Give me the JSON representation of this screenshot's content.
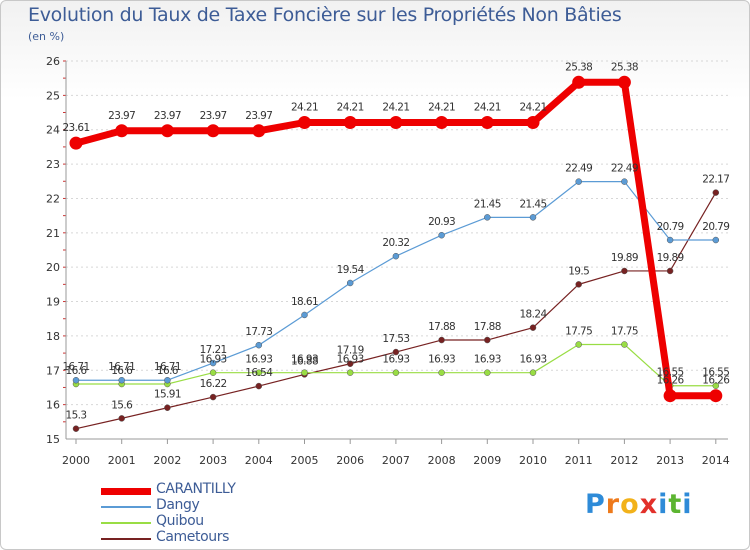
{
  "chart_data": {
    "type": "line",
    "title": "Evolution du Taux de Taxe Foncière sur les Propriétés Non Bâties",
    "ylabel": "(en %)",
    "xlabel": "",
    "ylim": [
      15,
      26
    ],
    "yticks": [
      "15",
      "16",
      "17",
      "18",
      "19",
      "20",
      "21",
      "22",
      "23",
      "24",
      "25",
      "26"
    ],
    "categories": [
      "2000",
      "2001",
      "2002",
      "2003",
      "2004",
      "2005",
      "2006",
      "2007",
      "2008",
      "2009",
      "2010",
      "2011",
      "2012",
      "2013",
      "2014"
    ],
    "series": [
      {
        "name": "CARANTILLY",
        "color": "#ee0000",
        "values": [
          23.61,
          23.97,
          23.97,
          23.97,
          23.97,
          24.21,
          24.21,
          24.21,
          24.21,
          24.21,
          24.21,
          25.38,
          25.38,
          16.26,
          16.26
        ],
        "labels": [
          "23.61",
          "23.97",
          "23.97",
          "23.97",
          "23.97",
          "24.21",
          "24.21",
          "24.21",
          "24.21",
          "24.21",
          "24.21",
          "25.38",
          "25.38",
          "16.26",
          "16.26"
        ]
      },
      {
        "name": "Dangy",
        "color": "#5b9bd5",
        "values": [
          16.71,
          16.71,
          16.71,
          17.21,
          17.73,
          18.61,
          19.54,
          20.32,
          20.93,
          21.45,
          21.45,
          22.49,
          22.49,
          20.79,
          20.79
        ],
        "labels": [
          "16.71",
          "16.71",
          "16.71",
          "17.21",
          "17.73",
          "18.61",
          "19.54",
          "20.32",
          "20.93",
          "21.45",
          "21.45",
          "22.49",
          "22.49",
          "20.79",
          "20.79"
        ]
      },
      {
        "name": "Quibou",
        "color": "#99dd44",
        "values": [
          16.6,
          16.6,
          16.6,
          16.93,
          16.93,
          16.93,
          16.93,
          16.93,
          16.93,
          16.93,
          16.93,
          17.75,
          17.75,
          16.55,
          16.55
        ],
        "labels": [
          "16.6",
          "16.6",
          "16.6",
          "16.93",
          "16.93",
          "16.93",
          "16.93",
          "16.93",
          "16.93",
          "16.93",
          "16.93",
          "17.75",
          "17.75",
          "16.55",
          "16.55"
        ]
      },
      {
        "name": "Cametours",
        "color": "#772222",
        "values": [
          15.3,
          15.6,
          15.91,
          16.22,
          16.54,
          16.88,
          17.19,
          17.53,
          17.88,
          17.88,
          18.24,
          19.5,
          19.89,
          19.89,
          22.17
        ],
        "labels": [
          "15.3",
          "15.6",
          "15.91",
          "16.22",
          "16.54",
          "16.88",
          "17.19",
          "17.53",
          "17.88",
          "17.88",
          "18.24",
          "19.5",
          "19.89",
          "19.89",
          "22.17"
        ]
      }
    ]
  },
  "brand": {
    "letters": [
      "P",
      "r",
      "o",
      "x",
      "i",
      "t",
      "i"
    ],
    "colors": [
      "#2e8bd8",
      "#ee7a1c",
      "#f2b21a",
      "#e2302a",
      "#2e8bd8",
      "#5cb531",
      "#2e8bd8"
    ]
  }
}
